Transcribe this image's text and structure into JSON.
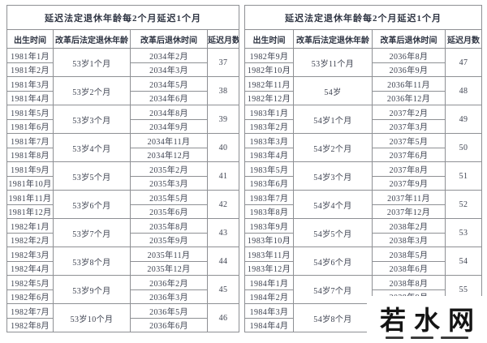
{
  "tables": {
    "left": {
      "banner": "延迟法定退休年龄每2个月延迟1个月",
      "columns": [
        "出生时间",
        "改革后法定退休年龄",
        "改革后退休时间",
        "延迟月数"
      ],
      "groups": [
        {
          "births": [
            "1981年1月",
            "1981年2月"
          ],
          "age": "53岁1个月",
          "retire": [
            "2034年2月",
            "2034年3月"
          ],
          "delay": "37"
        },
        {
          "births": [
            "1981年3月",
            "1981年4月"
          ],
          "age": "53岁2个月",
          "retire": [
            "2034年5月",
            "2034年6月"
          ],
          "delay": "38"
        },
        {
          "births": [
            "1981年5月",
            "1981年6月"
          ],
          "age": "53岁3个月",
          "retire": [
            "2034年8月",
            "2034年9月"
          ],
          "delay": "39"
        },
        {
          "births": [
            "1981年7月",
            "1981年8月"
          ],
          "age": "53岁4个月",
          "retire": [
            "2034年11月",
            "2034年12月"
          ],
          "delay": "40"
        },
        {
          "births": [
            "1981年9月",
            "1981年10月"
          ],
          "age": "53岁5个月",
          "retire": [
            "2035年2月",
            "2035年3月"
          ],
          "delay": "41"
        },
        {
          "births": [
            "1981年11月",
            "1981年12月"
          ],
          "age": "53岁6个月",
          "retire": [
            "2035年5月",
            "2035年6月"
          ],
          "delay": "42"
        },
        {
          "births": [
            "1982年1月",
            "1982年2月"
          ],
          "age": "53岁7个月",
          "retire": [
            "2035年8月",
            "2035年9月"
          ],
          "delay": "43"
        },
        {
          "births": [
            "1982年3月",
            "1982年4月"
          ],
          "age": "53岁8个月",
          "retire": [
            "2035年11月",
            "2035年12月"
          ],
          "delay": "44"
        },
        {
          "births": [
            "1982年5月",
            "1982年6月"
          ],
          "age": "53岁9个月",
          "retire": [
            "2036年2月",
            "2036年3月"
          ],
          "delay": "45"
        },
        {
          "births": [
            "1982年7月",
            "1982年8月"
          ],
          "age": "53岁10个月",
          "retire": [
            "2036年5月",
            "2036年6月"
          ],
          "delay": "46"
        }
      ]
    },
    "right": {
      "banner": "延迟法定退休年龄每2个月延迟1个月",
      "columns": [
        "出生时间",
        "改革后法定退休年龄",
        "改革后退休时间",
        "延迟月数"
      ],
      "groups": [
        {
          "births": [
            "1982年9月",
            "1982年10月"
          ],
          "age": "53岁11个月",
          "retire": [
            "2036年8月",
            "2036年9月"
          ],
          "delay": "47"
        },
        {
          "births": [
            "1982年11月",
            "1982年12月"
          ],
          "age": "54岁",
          "retire": [
            "2036年11月",
            "2036年12月"
          ],
          "delay": "48"
        },
        {
          "births": [
            "1983年1月",
            "1983年2月"
          ],
          "age": "54岁1个月",
          "retire": [
            "2037年2月",
            "2037年3月"
          ],
          "delay": "49"
        },
        {
          "births": [
            "1983年3月",
            "1983年4月"
          ],
          "age": "54岁2个月",
          "retire": [
            "2037年5月",
            "2037年6月"
          ],
          "delay": "50"
        },
        {
          "births": [
            "1983年5月",
            "1983年6月"
          ],
          "age": "54岁3个月",
          "retire": [
            "2037年8月",
            "2037年9月"
          ],
          "delay": "51"
        },
        {
          "births": [
            "1983年7月",
            "1983年8月"
          ],
          "age": "54岁4个月",
          "retire": [
            "2037年11月",
            "2037年12月"
          ],
          "delay": "52"
        },
        {
          "births": [
            "1983年9月",
            "1983年10月"
          ],
          "age": "54岁5个月",
          "retire": [
            "2038年2月",
            "2038年3月"
          ],
          "delay": "53"
        },
        {
          "births": [
            "1983年11月",
            "1983年12月"
          ],
          "age": "54岁6个月",
          "retire": [
            "2038年5月",
            "2038年6月"
          ],
          "delay": "54"
        },
        {
          "births": [
            "1984年1月",
            "1984年2月"
          ],
          "age": "54岁7个月",
          "retire": [
            "2038年8月",
            "2038年9月"
          ],
          "delay": "55"
        },
        {
          "births": [
            "1984年3月",
            "1984年4月"
          ],
          "age": "54岁8个月",
          "retire": [
            "",
            ""
          ],
          "delay": ""
        }
      ]
    }
  },
  "watermark": {
    "text": "若水网"
  },
  "colors": {
    "text": "#3d4250",
    "border": "#8e9094",
    "watermark_text": "#141414",
    "background": "#ffffff"
  }
}
